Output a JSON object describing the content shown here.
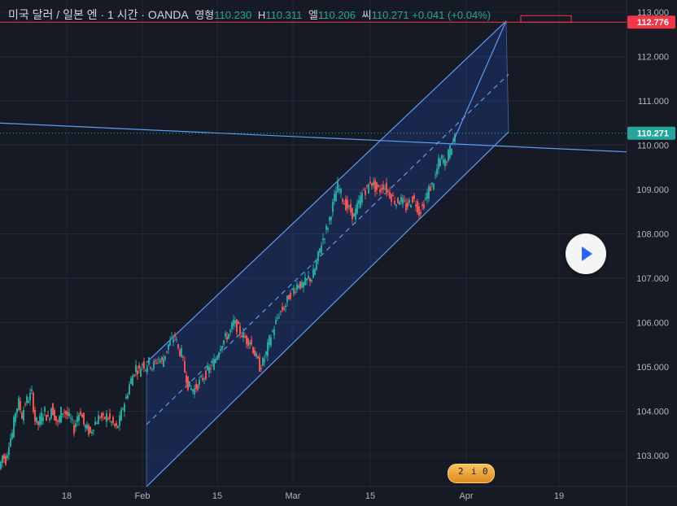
{
  "legend": {
    "symbol": "미국 달러 / 일본 엔 · 1 시간 · OANDA",
    "open_label": "영형",
    "open": "110.230",
    "high_label": "H",
    "high": "110.311",
    "low_label": "엘",
    "low": "110.206",
    "close_label": "씨",
    "close": "110.271",
    "change": "+0.041 (+0.04%)"
  },
  "price_tags": {
    "top": "112.776",
    "last": "110.271"
  },
  "badge": {
    "text_a": "2",
    "text_b": "i",
    "text_c": "0"
  },
  "colors": {
    "up": "#26a69a",
    "down": "#ef5350",
    "channel": "#2962ff",
    "line": "#5b9cf6",
    "tag_red": "#f23645",
    "tag_teal": "#26a69a"
  },
  "chart_data": {
    "type": "candlestick",
    "y_ticks": [
      "103.000",
      "104.000",
      "105.000",
      "106.000",
      "107.000",
      "108.000",
      "109.000",
      "110.000",
      "111.000",
      "112.000",
      "113.000"
    ],
    "x_ticks": [
      "18",
      "Feb",
      "15",
      "Mar",
      "15",
      "Apr",
      "19"
    ],
    "ylim": [
      102.3,
      113.1
    ],
    "price_path": [
      [
        0,
        102.7
      ],
      [
        4,
        103.0
      ],
      [
        8,
        102.9
      ],
      [
        12,
        103.3
      ],
      [
        16,
        103.5
      ],
      [
        20,
        104.0
      ],
      [
        24,
        104.2
      ],
      [
        28,
        103.9
      ],
      [
        32,
        104.2
      ],
      [
        36,
        104.3
      ],
      [
        40,
        104.4
      ],
      [
        44,
        103.8
      ],
      [
        48,
        103.7
      ],
      [
        52,
        103.9
      ],
      [
        56,
        104.0
      ],
      [
        60,
        103.8
      ],
      [
        64,
        104.1
      ],
      [
        68,
        103.9
      ],
      [
        72,
        103.7
      ],
      [
        76,
        104.0
      ],
      [
        80,
        104.0
      ],
      [
        84,
        103.9
      ],
      [
        88,
        103.8
      ],
      [
        92,
        103.6
      ],
      [
        96,
        103.9
      ],
      [
        100,
        104.0
      ],
      [
        104,
        103.7
      ],
      [
        108,
        103.6
      ],
      [
        112,
        103.5
      ],
      [
        116,
        103.7
      ],
      [
        120,
        103.8
      ],
      [
        124,
        103.9
      ],
      [
        128,
        103.8
      ],
      [
        132,
        103.9
      ],
      [
        136,
        103.8
      ],
      [
        140,
        103.7
      ],
      [
        144,
        103.6
      ],
      [
        148,
        103.8
      ],
      [
        152,
        104.1
      ],
      [
        156,
        104.3
      ],
      [
        160,
        104.6
      ],
      [
        164,
        104.8
      ],
      [
        168,
        105.0
      ],
      [
        172,
        104.9
      ],
      [
        176,
        105.1
      ],
      [
        180,
        105.0
      ],
      [
        184,
        105.1
      ],
      [
        188,
        105.0
      ],
      [
        192,
        105.1
      ],
      [
        196,
        105.2
      ],
      [
        200,
        105.1
      ],
      [
        204,
        105.3
      ],
      [
        208,
        105.5
      ],
      [
        212,
        105.6
      ],
      [
        216,
        105.7
      ],
      [
        220,
        105.4
      ],
      [
        224,
        105.3
      ],
      [
        228,
        104.9
      ],
      [
        232,
        104.6
      ],
      [
        236,
        104.5
      ],
      [
        240,
        104.5
      ],
      [
        244,
        104.6
      ],
      [
        248,
        104.7
      ],
      [
        252,
        104.8
      ],
      [
        256,
        104.9
      ],
      [
        260,
        105.0
      ],
      [
        264,
        105.1
      ],
      [
        268,
        105.3
      ],
      [
        272,
        105.5
      ],
      [
        276,
        105.6
      ],
      [
        280,
        105.7
      ],
      [
        284,
        105.8
      ],
      [
        288,
        106.0
      ],
      [
        292,
        105.9
      ],
      [
        296,
        105.8
      ],
      [
        300,
        105.7
      ],
      [
        304,
        105.6
      ],
      [
        308,
        105.6
      ],
      [
        312,
        105.4
      ],
      [
        316,
        105.2
      ],
      [
        320,
        105.0
      ],
      [
        324,
        105.1
      ],
      [
        328,
        105.3
      ],
      [
        332,
        105.6
      ],
      [
        336,
        105.8
      ],
      [
        340,
        106.0
      ],
      [
        344,
        106.2
      ],
      [
        348,
        106.3
      ],
      [
        352,
        106.4
      ],
      [
        356,
        106.6
      ],
      [
        360,
        106.7
      ],
      [
        364,
        106.8
      ],
      [
        368,
        106.9
      ],
      [
        372,
        106.8
      ],
      [
        376,
        106.9
      ],
      [
        380,
        107.0
      ],
      [
        384,
        107.0
      ],
      [
        388,
        107.2
      ],
      [
        392,
        107.5
      ],
      [
        396,
        107.8
      ],
      [
        400,
        108.0
      ],
      [
        404,
        108.2
      ],
      [
        408,
        108.5
      ],
      [
        412,
        108.8
      ],
      [
        416,
        109.1
      ],
      [
        420,
        108.9
      ],
      [
        424,
        108.7
      ],
      [
        428,
        108.6
      ],
      [
        432,
        108.5
      ],
      [
        436,
        108.4
      ],
      [
        440,
        108.6
      ],
      [
        444,
        108.8
      ],
      [
        448,
        109.0
      ],
      [
        452,
        109.0
      ],
      [
        456,
        109.2
      ],
      [
        460,
        109.1
      ],
      [
        464,
        109.0
      ],
      [
        468,
        109.0
      ],
      [
        472,
        109.1
      ],
      [
        476,
        109.0
      ],
      [
        480,
        108.9
      ],
      [
        484,
        108.8
      ],
      [
        488,
        108.7
      ],
      [
        492,
        108.8
      ],
      [
        496,
        108.7
      ],
      [
        500,
        108.6
      ],
      [
        504,
        108.7
      ],
      [
        508,
        108.8
      ],
      [
        512,
        108.7
      ],
      [
        516,
        108.5
      ],
      [
        520,
        108.6
      ],
      [
        524,
        108.8
      ],
      [
        528,
        109.0
      ],
      [
        532,
        109.1
      ],
      [
        536,
        109.3
      ],
      [
        540,
        109.6
      ],
      [
        544,
        109.7
      ],
      [
        548,
        109.6
      ],
      [
        552,
        109.8
      ],
      [
        556,
        110.0
      ],
      [
        560,
        110.27
      ]
    ],
    "channel": {
      "upper": [
        [
          180,
          105.1
        ],
        [
          622,
          112.8
        ]
      ],
      "mid": [
        [
          180,
          103.7
        ],
        [
          625,
          111.6
        ]
      ],
      "lower": [
        [
          180,
          102.3
        ],
        [
          625,
          110.3
        ]
      ]
    },
    "trendline": [
      [
        0,
        110.5
      ],
      [
        770,
        109.85
      ]
    ],
    "projection": [
      [
        555,
        110.0
      ],
      [
        622,
        112.8
      ]
    ],
    "markers": {
      "top": 112.776,
      "last": 110.271
    }
  }
}
